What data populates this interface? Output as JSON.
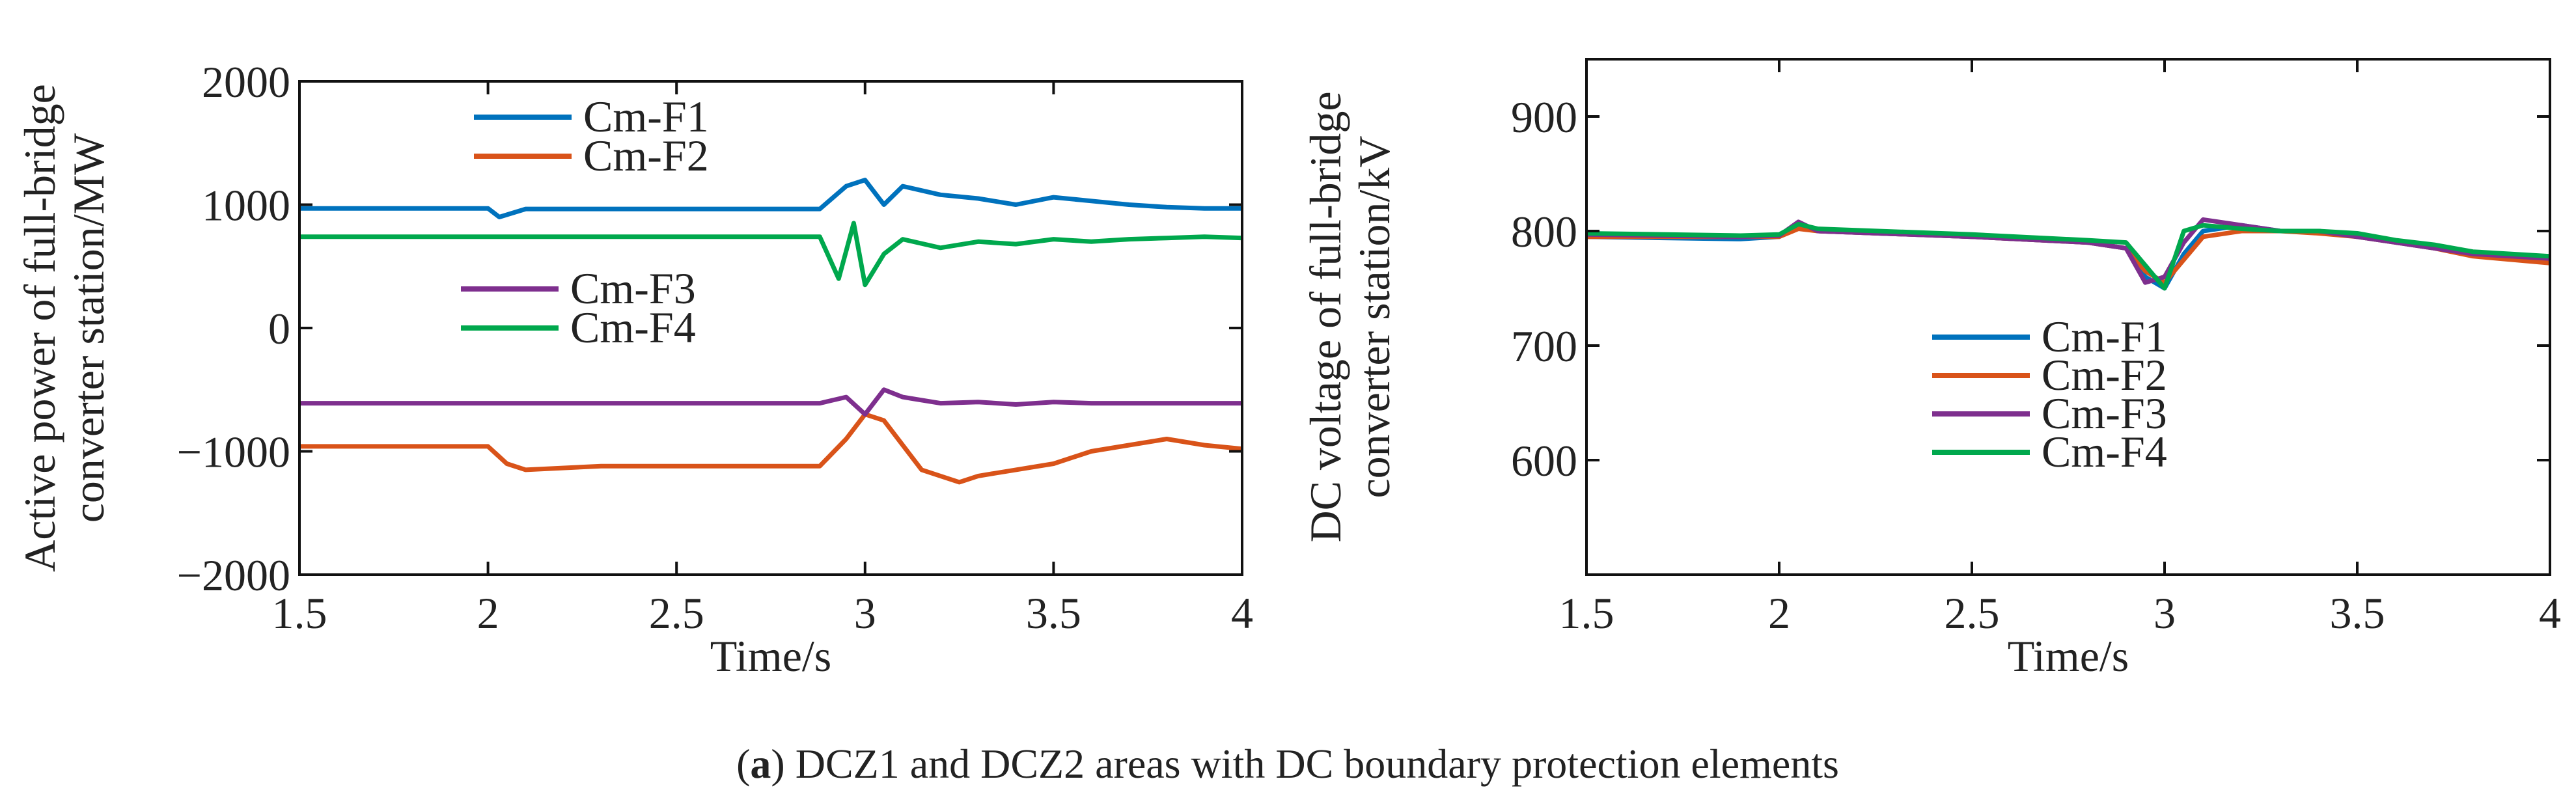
{
  "caption": {
    "label": "a",
    "text": ") DCZ1 and DCZ2 areas with DC boundary protection elements",
    "open_paren": "("
  },
  "chart_data": [
    {
      "type": "line",
      "xlabel": "Time/s",
      "ylabel_lines": [
        "Active power of full-bridge",
        "converter station/MW"
      ],
      "xlim": [
        1.5,
        4
      ],
      "ylim": [
        -2000,
        2000
      ],
      "xticks": [
        1.5,
        2,
        2.5,
        3,
        3.5,
        4
      ],
      "xtick_labels": [
        "1.5",
        "2",
        "2.5",
        "3",
        "3.5",
        "4"
      ],
      "yticks": [
        -2000,
        -1000,
        0,
        1000,
        2000
      ],
      "ytick_labels": [
        "−2000",
        "−1000",
        "0",
        "1000",
        "2000"
      ],
      "legend_groups": [
        [
          "Cm-F1",
          "Cm-F2"
        ],
        [
          "Cm-F3",
          "Cm-F4"
        ]
      ],
      "series": [
        {
          "name": "Cm-F1",
          "color": "#0072BD",
          "x": [
            1.5,
            1.8,
            2.0,
            2.03,
            2.1,
            2.5,
            2.88,
            2.95,
            3.0,
            3.05,
            3.1,
            3.2,
            3.3,
            3.4,
            3.5,
            3.6,
            3.7,
            3.8,
            3.9,
            4.0
          ],
          "y": [
            970,
            970,
            970,
            900,
            965,
            965,
            965,
            1150,
            1200,
            1000,
            1150,
            1080,
            1050,
            1000,
            1060,
            1030,
            1000,
            980,
            970,
            970
          ]
        },
        {
          "name": "Cm-F2",
          "color": "#D95319",
          "x": [
            1.5,
            1.7,
            1.9,
            2.0,
            2.05,
            2.1,
            2.3,
            2.5,
            2.7,
            2.88,
            2.95,
            3.0,
            3.05,
            3.1,
            3.15,
            3.2,
            3.25,
            3.3,
            3.4,
            3.5,
            3.6,
            3.7,
            3.8,
            3.9,
            4.0
          ],
          "y": [
            -960,
            -960,
            -960,
            -960,
            -1100,
            -1150,
            -1120,
            -1120,
            -1120,
            -1120,
            -900,
            -700,
            -750,
            -950,
            -1150,
            -1200,
            -1250,
            -1200,
            -1150,
            -1100,
            -1000,
            -950,
            -900,
            -950,
            -980
          ]
        },
        {
          "name": "Cm-F3",
          "color": "#7E2F8E",
          "x": [
            1.5,
            2.0,
            2.5,
            2.88,
            2.95,
            3.0,
            3.05,
            3.1,
            3.2,
            3.3,
            3.4,
            3.5,
            3.6,
            3.7,
            3.8,
            3.9,
            4.0
          ],
          "y": [
            -610,
            -610,
            -610,
            -610,
            -560,
            -700,
            -500,
            -560,
            -610,
            -600,
            -620,
            -600,
            -610,
            -610,
            -610,
            -610,
            -610
          ]
        },
        {
          "name": "Cm-F4",
          "color": "#00A84D",
          "x": [
            1.5,
            2.0,
            2.5,
            2.88,
            2.93,
            2.97,
            3.0,
            3.05,
            3.1,
            3.2,
            3.3,
            3.4,
            3.5,
            3.6,
            3.7,
            3.8,
            3.9,
            4.0
          ],
          "y": [
            740,
            740,
            740,
            740,
            400,
            850,
            350,
            600,
            720,
            650,
            700,
            680,
            720,
            700,
            720,
            730,
            740,
            730
          ]
        }
      ]
    },
    {
      "type": "line",
      "xlabel": "Time/s",
      "ylabel_lines": [
        "DC voltage of full-bridge",
        "converter station/kV"
      ],
      "xlim": [
        1.5,
        4
      ],
      "ylim": [
        500,
        950
      ],
      "xticks": [
        1.5,
        2,
        2.5,
        3,
        3.5,
        4
      ],
      "xtick_labels": [
        "1.5",
        "2",
        "2.5",
        "3",
        "3.5",
        "4"
      ],
      "yticks": [
        600,
        700,
        800,
        900
      ],
      "ytick_labels": [
        "600",
        "700",
        "800",
        "900"
      ],
      "legend_groups": [
        [
          "Cm-F1",
          "Cm-F2",
          "Cm-F3",
          "Cm-F4"
        ]
      ],
      "series": [
        {
          "name": "Cm-F1",
          "color": "#0072BD",
          "x": [
            1.5,
            1.9,
            2.0,
            2.05,
            2.1,
            2.5,
            2.8,
            2.9,
            2.95,
            3.0,
            3.05,
            3.1,
            3.2,
            3.3,
            3.4,
            3.5,
            3.6,
            3.7,
            3.8,
            3.9,
            4.0
          ],
          "y": [
            795,
            793,
            795,
            805,
            800,
            795,
            790,
            785,
            760,
            750,
            780,
            800,
            805,
            800,
            800,
            795,
            790,
            785,
            780,
            778,
            775
          ]
        },
        {
          "name": "Cm-F2",
          "color": "#D95319",
          "x": [
            1.5,
            1.9,
            2.0,
            2.05,
            2.1,
            2.5,
            2.8,
            2.9,
            2.95,
            3.0,
            3.05,
            3.1,
            3.2,
            3.3,
            3.4,
            3.5,
            3.6,
            3.7,
            3.8,
            3.9,
            4.0
          ],
          "y": [
            795,
            795,
            795,
            802,
            800,
            795,
            790,
            785,
            765,
            755,
            775,
            795,
            800,
            800,
            798,
            795,
            790,
            785,
            778,
            775,
            772
          ]
        },
        {
          "name": "Cm-F3",
          "color": "#7E2F8E",
          "x": [
            1.5,
            1.9,
            2.0,
            2.05,
            2.1,
            2.5,
            2.8,
            2.9,
            2.95,
            3.0,
            3.05,
            3.1,
            3.2,
            3.3,
            3.4,
            3.5,
            3.6,
            3.7,
            3.8,
            3.9,
            4.0
          ],
          "y": [
            797,
            795,
            796,
            808,
            800,
            795,
            790,
            785,
            755,
            760,
            790,
            810,
            805,
            800,
            800,
            795,
            790,
            785,
            780,
            778,
            776
          ]
        },
        {
          "name": "Cm-F4",
          "color": "#00A84D",
          "x": [
            1.5,
            1.9,
            2.0,
            2.05,
            2.1,
            2.5,
            2.8,
            2.9,
            2.95,
            3.0,
            3.05,
            3.1,
            3.2,
            3.3,
            3.4,
            3.5,
            3.6,
            3.7,
            3.8,
            3.9,
            4.0
          ],
          "y": [
            798,
            796,
            797,
            806,
            802,
            797,
            792,
            790,
            770,
            750,
            800,
            805,
            802,
            800,
            800,
            798,
            792,
            788,
            782,
            780,
            778
          ]
        }
      ]
    }
  ]
}
